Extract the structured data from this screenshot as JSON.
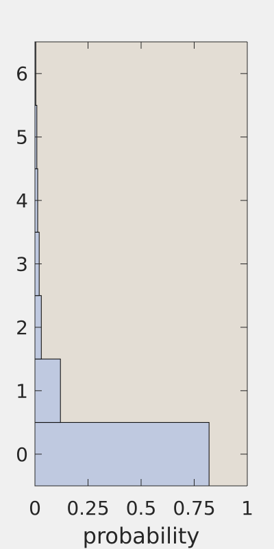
{
  "chart_data": {
    "type": "bar",
    "orientation": "horizontal",
    "categories": [
      "0",
      "1",
      "2",
      "3",
      "4",
      "5",
      "6"
    ],
    "values": [
      0.82,
      0.12,
      0.03,
      0.02,
      0.013,
      0.009,
      0.004
    ],
    "xlabel": "probability",
    "ylabel": "",
    "xlim": [
      0,
      1
    ],
    "ylim": [
      -0.5,
      6.5
    ],
    "x_ticks": [
      0,
      0.25,
      0.5,
      0.75,
      1
    ],
    "x_tick_labels": [
      "0",
      "0.25",
      "0.5",
      "0.75",
      "1"
    ],
    "y_ticks": [
      0,
      1,
      2,
      3,
      4,
      5,
      6
    ],
    "y_tick_labels": [
      "0",
      "1",
      "2",
      "3",
      "4",
      "5",
      "6"
    ],
    "grid": false,
    "colors": {
      "bar_fill": "#bfc9e0",
      "bar_edge": "#000000",
      "plot_background": "#e3ddd4",
      "axis": "#262626",
      "figure_background": "#f0f0f0"
    }
  }
}
